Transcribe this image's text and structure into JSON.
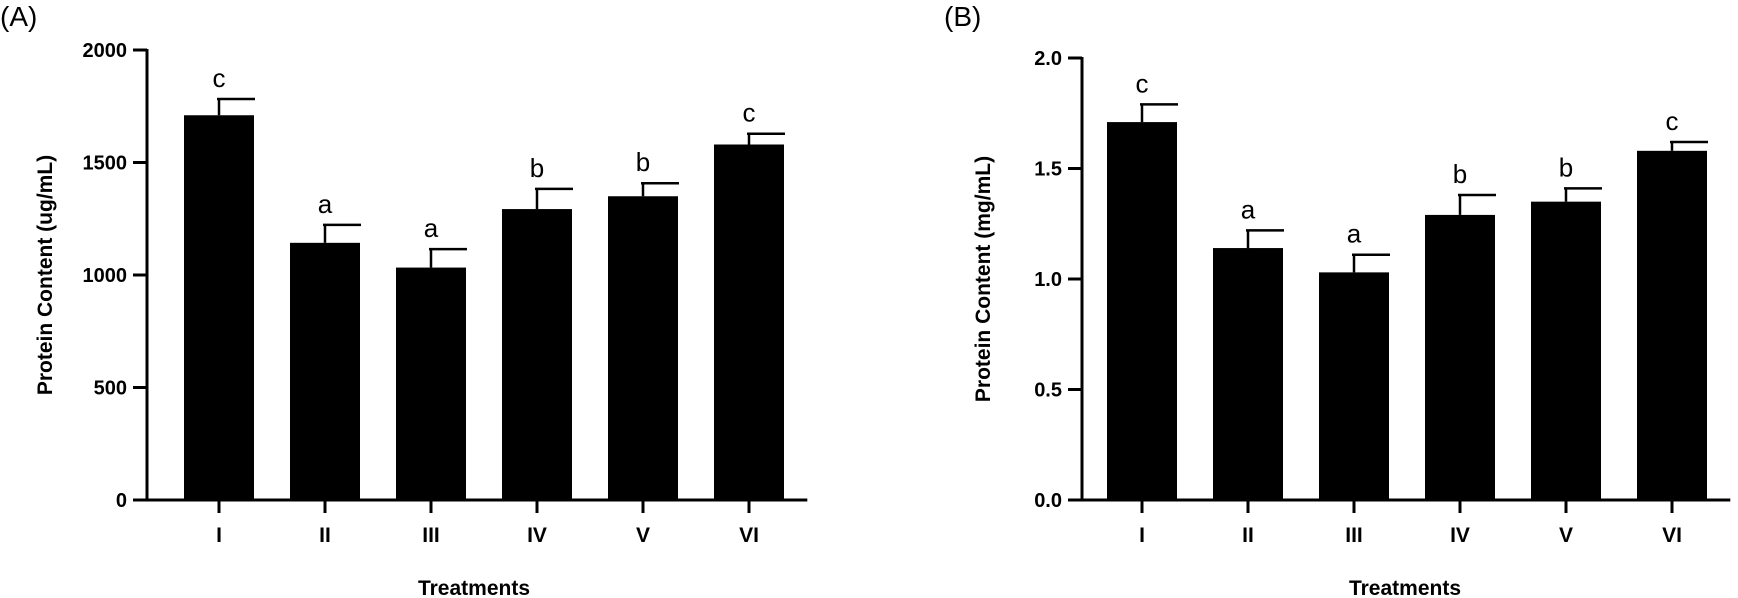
{
  "chart_data": [
    {
      "type": "bar",
      "panel_label": "(A)",
      "title": "",
      "xlabel": "Treatments",
      "ylabel": "Protein Content (ug/mL)",
      "ylim": [
        0,
        2000
      ],
      "yticks": [
        0,
        500,
        1000,
        1500,
        2000
      ],
      "ytick_labels": [
        "0",
        "500",
        "1000",
        "1500",
        "2000"
      ],
      "categories": [
        "I",
        "II",
        "III",
        "IV",
        "V",
        "VI"
      ],
      "values": [
        1710,
        1143,
        1033,
        1293,
        1350,
        1580
      ],
      "errors": [
        72,
        80,
        82,
        90,
        58,
        48
      ],
      "significance": [
        "c",
        "a",
        "a",
        "b",
        "b",
        "c"
      ],
      "bar_color": "#000000",
      "grid": false
    },
    {
      "type": "bar",
      "panel_label": "(B)",
      "title": "",
      "xlabel": "Treatments",
      "ylabel": "Protein Content (mg/mL)",
      "ylim": [
        0,
        2.0
      ],
      "yticks": [
        0,
        0.5,
        1.0,
        1.5,
        2.0
      ],
      "ytick_labels": [
        "0.0",
        "0.5",
        "1.0",
        "1.5",
        "2.0"
      ],
      "categories": [
        "I",
        "II",
        "III",
        "IV",
        "V",
        "VI"
      ],
      "values": [
        1.71,
        1.14,
        1.03,
        1.29,
        1.35,
        1.58
      ],
      "errors": [
        0.08,
        0.08,
        0.08,
        0.09,
        0.06,
        0.04
      ],
      "significance": [
        "c",
        "a",
        "a",
        "b",
        "b",
        "c"
      ],
      "bar_color": "#000000",
      "grid": false
    }
  ]
}
